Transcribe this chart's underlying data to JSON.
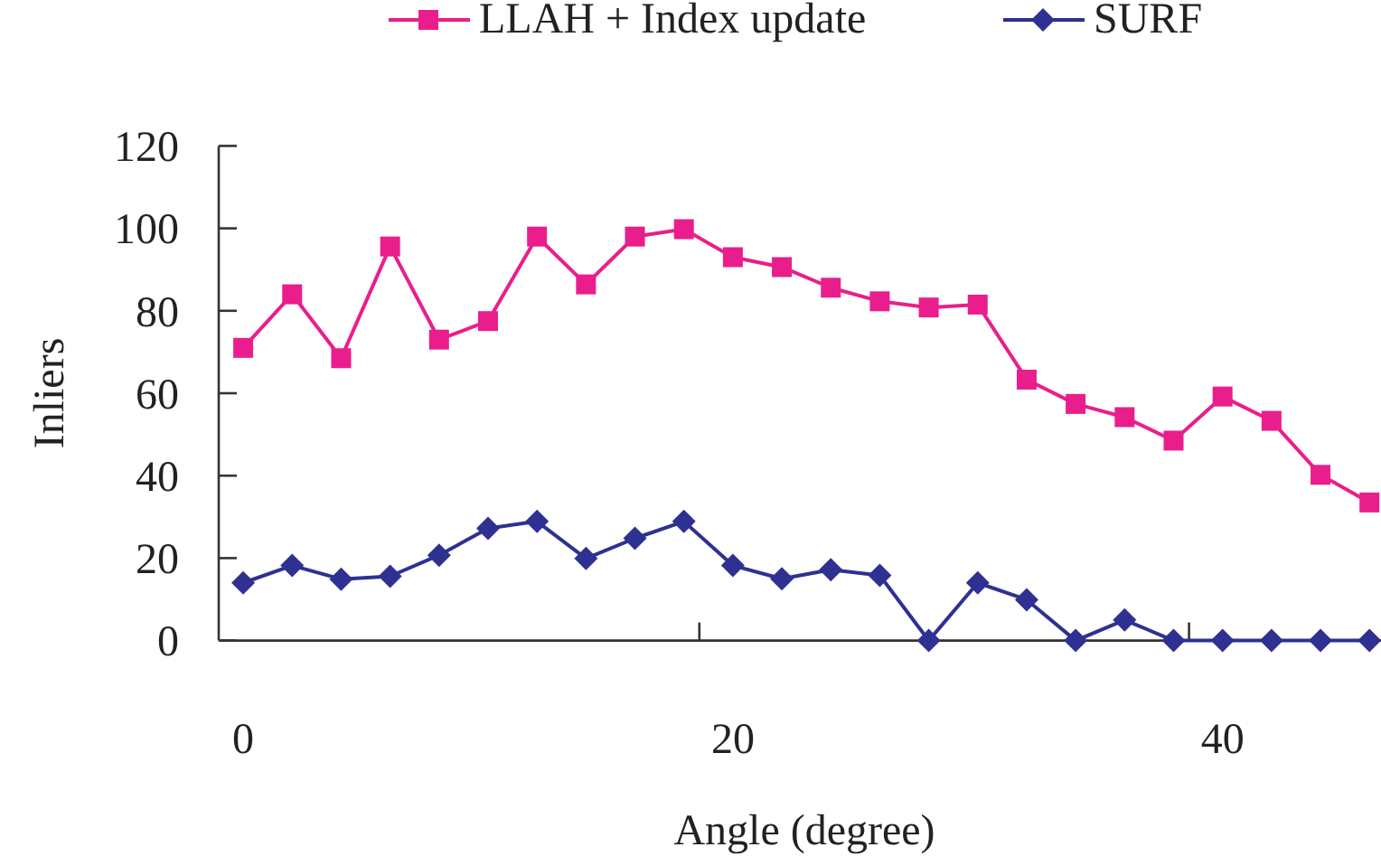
{
  "chart_data": {
    "type": "line",
    "xlabel": "Angle (degree)",
    "ylabel": "Inliers",
    "categories": [
      "0",
      null,
      null,
      null,
      null,
      null,
      null,
      null,
      null,
      null,
      "20",
      null,
      null,
      null,
      null,
      null,
      null,
      null,
      null,
      null,
      "40",
      null,
      null,
      null
    ],
    "ylim": [
      0,
      120
    ],
    "yticks": [
      0,
      20,
      40,
      60,
      80,
      100,
      120
    ],
    "legend": "top",
    "grid": false,
    "series": [
      {
        "name": "LLAH + Index update",
        "color": "#e91e8c",
        "marker": "square",
        "values": [
          71,
          84,
          68.5,
          95.6,
          73,
          77.5,
          98,
          86.4,
          98,
          99.8,
          93,
          90.6,
          85.6,
          82.3,
          80.8,
          81.5,
          63.3,
          57.4,
          54.2,
          48.5,
          59.2,
          53.3,
          40.2,
          33.5
        ]
      },
      {
        "name": "SURF",
        "color": "#2e3192",
        "marker": "diamond",
        "values": [
          14,
          18.2,
          14.9,
          15.6,
          20.7,
          27.2,
          28.9,
          19.9,
          24.8,
          28.9,
          18.2,
          15,
          17.2,
          15.8,
          0,
          14,
          9.9,
          0,
          5,
          0,
          0,
          0,
          0,
          0
        ]
      }
    ]
  }
}
